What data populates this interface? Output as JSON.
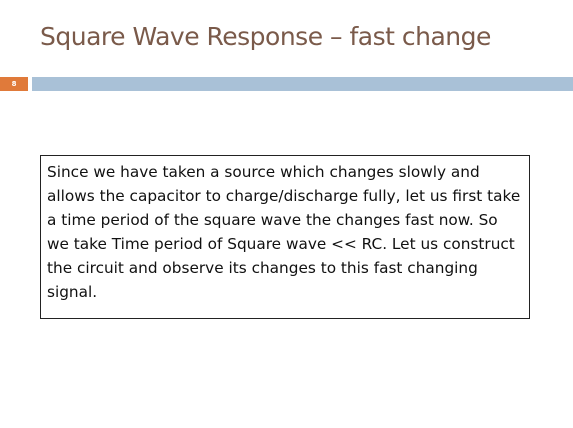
{
  "slide": {
    "title": "Square Wave Response – fast change",
    "number": "8",
    "body_text": "Since we have taken a source which changes slowly and allows the capacitor to charge/discharge fully, let us first take a time period of the square wave the changes fast now. So we take Time period of Square wave  <<  RC. Let us construct the circuit and observe its changes to this fast changing signal."
  },
  "colors": {
    "title": "#7a5a4a",
    "number_box": "#e07a3a",
    "header_band": "#a9c1d7"
  }
}
